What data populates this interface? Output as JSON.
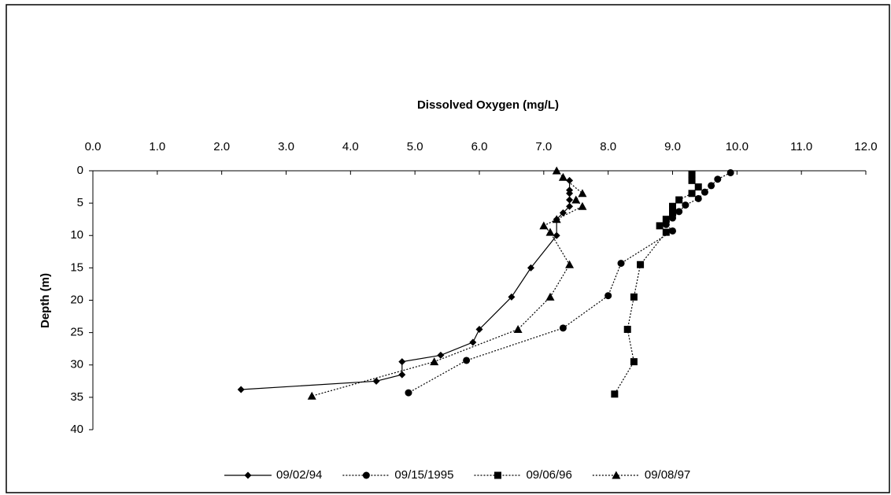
{
  "chart_data": {
    "type": "scatter",
    "xlabel": "Dissolved Oxygen (mg/L)",
    "ylabel": "Depth (m)",
    "xlim": [
      0,
      12
    ],
    "ylim": [
      0,
      40
    ],
    "y_inverted": true,
    "x_axis_position": "top",
    "xticks": [
      {
        "value": 0,
        "label": "0.0"
      },
      {
        "value": 1,
        "label": "1.0"
      },
      {
        "value": 2,
        "label": "2.0"
      },
      {
        "value": 3,
        "label": "3.0"
      },
      {
        "value": 4,
        "label": "4.0"
      },
      {
        "value": 5,
        "label": "5.0"
      },
      {
        "value": 6,
        "label": "6.0"
      },
      {
        "value": 7,
        "label": "7.0"
      },
      {
        "value": 8,
        "label": "8.0"
      },
      {
        "value": 9,
        "label": "9.0"
      },
      {
        "value": 10,
        "label": "10.0"
      },
      {
        "value": 11,
        "label": "11.0"
      },
      {
        "value": 12,
        "label": "12.0"
      }
    ],
    "yticks": [
      0,
      5,
      10,
      15,
      20,
      25,
      30,
      35,
      40
    ],
    "legend": "bottom",
    "series": [
      {
        "name": "09/02/94",
        "color": "#000000",
        "marker": "diamond",
        "dash": "solid",
        "x": [
          7.4,
          7.4,
          7.4,
          7.4,
          7.4,
          7.3,
          7.2,
          7.2,
          6.8,
          6.5,
          6.0,
          5.9,
          5.4,
          4.8,
          4.8,
          4.4,
          2.3
        ],
        "y": [
          1.5,
          3,
          3.5,
          4.5,
          5.5,
          6.5,
          7.5,
          10,
          15,
          19.5,
          24.5,
          26.5,
          28.5,
          29.5,
          31.5,
          32.5,
          33.8
        ]
      },
      {
        "name": "09/15/1995",
        "color": "#000000",
        "marker": "circle",
        "dash": "dotted",
        "x": [
          9.9,
          9.7,
          9.6,
          9.5,
          9.4,
          9.2,
          9.1,
          9.0,
          8.9,
          9.0,
          8.2,
          8.0,
          7.3,
          5.8,
          4.9
        ],
        "y": [
          0.3,
          1.3,
          2.3,
          3.3,
          4.3,
          5.3,
          6.3,
          7.3,
          8.3,
          9.3,
          14.3,
          19.3,
          24.3,
          29.3,
          34.3
        ]
      },
      {
        "name": "09/06/96",
        "color": "#000000",
        "marker": "square",
        "dash": "dotted",
        "x": [
          9.3,
          9.3,
          9.4,
          9.3,
          9.1,
          9.0,
          9.0,
          8.9,
          8.8,
          8.9,
          8.5,
          8.4,
          8.3,
          8.4,
          8.1
        ],
        "y": [
          0.5,
          1.5,
          2.5,
          3.5,
          4.5,
          5.5,
          6.5,
          7.5,
          8.5,
          9.5,
          14.5,
          19.5,
          24.5,
          29.5,
          34.5
        ]
      },
      {
        "name": "09/08/97",
        "color": "#000000",
        "marker": "triangle",
        "dash": "dotted",
        "x": [
          7.2,
          7.3,
          7.6,
          7.5,
          7.6,
          7.2,
          7.0,
          7.1,
          7.4,
          7.1,
          6.6,
          5.3,
          3.4
        ],
        "y": [
          0,
          1,
          3.5,
          4.5,
          5.5,
          7.5,
          8.5,
          9.5,
          14.5,
          19.5,
          24.5,
          29.5,
          34.8
        ]
      }
    ]
  }
}
